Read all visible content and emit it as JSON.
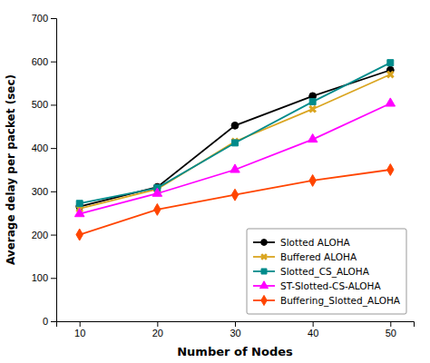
{
  "chart_data": {
    "type": "line",
    "x": [
      10,
      20,
      30,
      40,
      50
    ],
    "series": [
      {
        "name": "Slotted ALOHA",
        "values": [
          265,
          310,
          452,
          520,
          580
        ],
        "color": "#000000",
        "marker": "circle",
        "line_style": "solid"
      },
      {
        "name": "Buffered ALOHA",
        "values": [
          260,
          305,
          415,
          490,
          570
        ],
        "color": "#DAA520",
        "marker": "x",
        "line_style": "solid"
      },
      {
        "name": "Slotted_CS_ALOHA",
        "values": [
          272,
          308,
          412,
          507,
          597
        ],
        "color": "#008B8B",
        "marker": "square",
        "line_style": "solid"
      },
      {
        "name": "ST-Slotted-CS-ALOHA",
        "values": [
          248,
          295,
          350,
          420,
          503
        ],
        "color": "#FF00FF",
        "marker": "triangle",
        "line_style": "solid"
      },
      {
        "name": "Buffering_Slotted_ALOHA",
        "values": [
          200,
          258,
          292,
          325,
          350
        ],
        "color": "#FF4500",
        "marker": "diamond",
        "line_style": "solid"
      }
    ],
    "xlabel": "Number of Nodes",
    "ylabel": "Average delay per packet (sec)",
    "xlim": [
      7,
      53
    ],
    "xticks": [
      10,
      20,
      30,
      40,
      50
    ],
    "ylim": [
      0,
      700
    ],
    "yticks": [
      0,
      100,
      200,
      300,
      400,
      500,
      600,
      700
    ],
    "grid": false,
    "legend": "lower right"
  }
}
